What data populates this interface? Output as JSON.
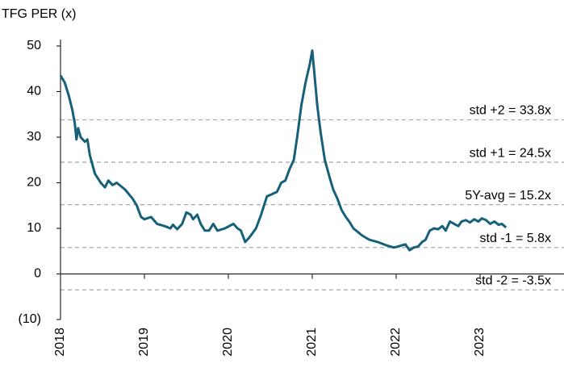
{
  "chart_data": {
    "type": "line",
    "title": "TFG PER (x)",
    "x": [
      2018.0,
      2018.05,
      2018.1,
      2018.14,
      2018.17,
      2018.19,
      2018.21,
      2018.24,
      2018.29,
      2018.32,
      2018.35,
      2018.41,
      2018.48,
      2018.53,
      2018.57,
      2018.62,
      2018.67,
      2018.77,
      2018.86,
      2018.91,
      2018.96,
      2019.0,
      2019.08,
      2019.15,
      2019.24,
      2019.31,
      2019.34,
      2019.39,
      2019.45,
      2019.5,
      2019.55,
      2019.58,
      2019.63,
      2019.67,
      2019.72,
      2019.77,
      2019.82,
      2019.87,
      2019.96,
      2020.06,
      2020.11,
      2020.15,
      2020.2,
      2020.25,
      2020.33,
      2020.39,
      2020.46,
      2020.52,
      2020.58,
      2020.63,
      2020.68,
      2020.73,
      2020.78,
      2020.82,
      2020.87,
      2020.92,
      2020.97,
      2021.0,
      2021.02,
      2021.06,
      2021.1,
      2021.15,
      2021.21,
      2021.25,
      2021.3,
      2021.35,
      2021.4,
      2021.44,
      2021.49,
      2021.59,
      2021.68,
      2021.78,
      2021.88,
      2021.97,
      2022.02,
      2022.07,
      2022.11,
      2022.16,
      2022.21,
      2022.26,
      2022.31,
      2022.35,
      2022.4,
      2022.45,
      2022.5,
      2022.55,
      2022.59,
      2022.64,
      2022.69,
      2022.74,
      2022.78,
      2022.83,
      2022.88,
      2022.93,
      2022.98,
      2023.02,
      2023.07,
      2023.12,
      2023.17,
      2023.22,
      2023.26,
      2023.31
    ],
    "series": [
      {
        "name": "TFG PER",
        "color": "#16607a",
        "values": [
          43.5,
          42,
          39,
          36,
          33,
          29.5,
          32,
          30,
          29,
          29.5,
          26,
          22,
          20,
          19,
          20.5,
          19.5,
          20,
          18.5,
          16.5,
          15,
          12.5,
          12,
          12.5,
          11,
          10.5,
          10,
          10.8,
          9.8,
          11,
          13.5,
          13,
          12,
          13,
          11,
          9.5,
          9.5,
          11,
          9.5,
          10,
          11,
          10,
          9.5,
          7,
          8,
          10,
          13,
          17,
          17.5,
          18,
          20,
          20.5,
          23,
          25,
          30,
          37,
          42,
          46,
          49,
          45,
          37,
          31,
          25,
          21,
          18.5,
          16.5,
          14,
          12.5,
          11.5,
          10,
          8.5,
          7.5,
          7,
          6.3,
          5.8,
          6,
          6.3,
          6.5,
          5.2,
          5.8,
          6,
          7,
          7.5,
          9.5,
          10,
          9.8,
          10.5,
          9.5,
          11.5,
          11,
          10.5,
          11.5,
          11.8,
          11.3,
          12,
          11.5,
          12.2,
          11.8,
          11,
          11.5,
          10.8,
          11,
          10.2
        ]
      }
    ],
    "xlim": [
      2018,
      2024
    ],
    "xticks": [
      2018,
      2019,
      2020,
      2021,
      2022,
      2023
    ],
    "ylim": [
      -10,
      50
    ],
    "yticks": [
      {
        "value": -10,
        "label": "(10)"
      },
      0,
      10,
      20,
      30,
      40,
      50
    ],
    "reference_lines": [
      {
        "value": 33.8,
        "label": "std +2 = 33.8x"
      },
      {
        "value": 24.5,
        "label": "std +1 = 24.5x"
      },
      {
        "value": 15.2,
        "label": "5Y-avg = 15.2x"
      },
      {
        "value": 5.8,
        "label": "std -1 = 5.8x"
      },
      {
        "value": -3.5,
        "label": "std -2 = -3.5x"
      }
    ]
  }
}
